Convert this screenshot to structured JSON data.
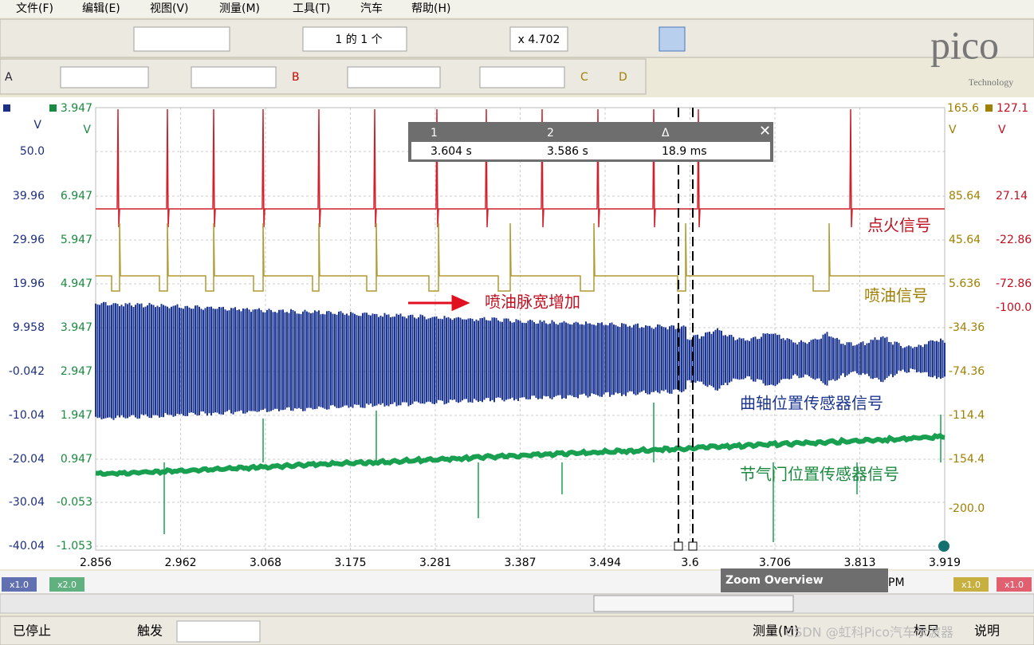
{
  "menu": [
    "文件(F)",
    "编辑(E)",
    "视图(V)",
    "测量(M)",
    "工具(T)",
    "汽车",
    "帮助(H)"
  ],
  "toolbar": {
    "page": "1 的 1 个",
    "zoom": "x 4.702",
    "channels": [
      "A",
      "B",
      "C",
      "D"
    ]
  },
  "logo": {
    "name": "pico",
    "sub": "Technology"
  },
  "axes": {
    "left1": {
      "unit": "V",
      "labels": [
        "50.0",
        "39.96",
        "29.96",
        "19.96",
        "9.958",
        "-0.042",
        "-10.04",
        "-20.04",
        "-30.04",
        "-40.04"
      ]
    },
    "left2": {
      "top": "3.947",
      "unit": "V",
      "labels": [
        "6.947",
        "5.947",
        "4.947",
        "3.947",
        "2.947",
        "1.947",
        "0.947",
        "-0.053",
        "-1.053"
      ]
    },
    "right1": {
      "top": "165.6",
      "unit": "V",
      "labels": [
        "85.64",
        "45.64",
        "5.636",
        "-34.36",
        "-74.36",
        "-114.4",
        "-154.4",
        "-200.0"
      ]
    },
    "right2": {
      "top": "127.1",
      "unit": "V",
      "labels": [
        "27.14",
        "-22.86",
        "-72.86",
        "-100.0"
      ]
    },
    "x": {
      "labels": [
        "2.856",
        "2.962",
        "3.068",
        "3.175",
        "3.281",
        "3.387",
        "3.494",
        "3.6",
        "3.706",
        "3.813",
        "3.919"
      ],
      "unit": "s"
    }
  },
  "rulers": {
    "headers": [
      "1",
      "2",
      "Δ"
    ],
    "values": [
      "3.604 s",
      "3.586 s",
      "18.9 ms"
    ]
  },
  "annotations": {
    "ignition": "点火信号",
    "injection": "喷油信号",
    "pulse": "喷油脉宽增加",
    "crank": "曲轴位置传感器信号",
    "throttle": "节气门位置传感器信号"
  },
  "bottom": {
    "scales": [
      "x1.0",
      "x2.0",
      "x1.0",
      "x1.0"
    ],
    "zoom_overview": "Zoom Overview",
    "pm": "PM"
  },
  "status": {
    "stopped": "已停止",
    "trigger": "触发",
    "measure": "测量(M)",
    "ruler": "标尺",
    "notes": "说明",
    "watermark": "CSDN @虹科Pico汽车示波器"
  }
}
